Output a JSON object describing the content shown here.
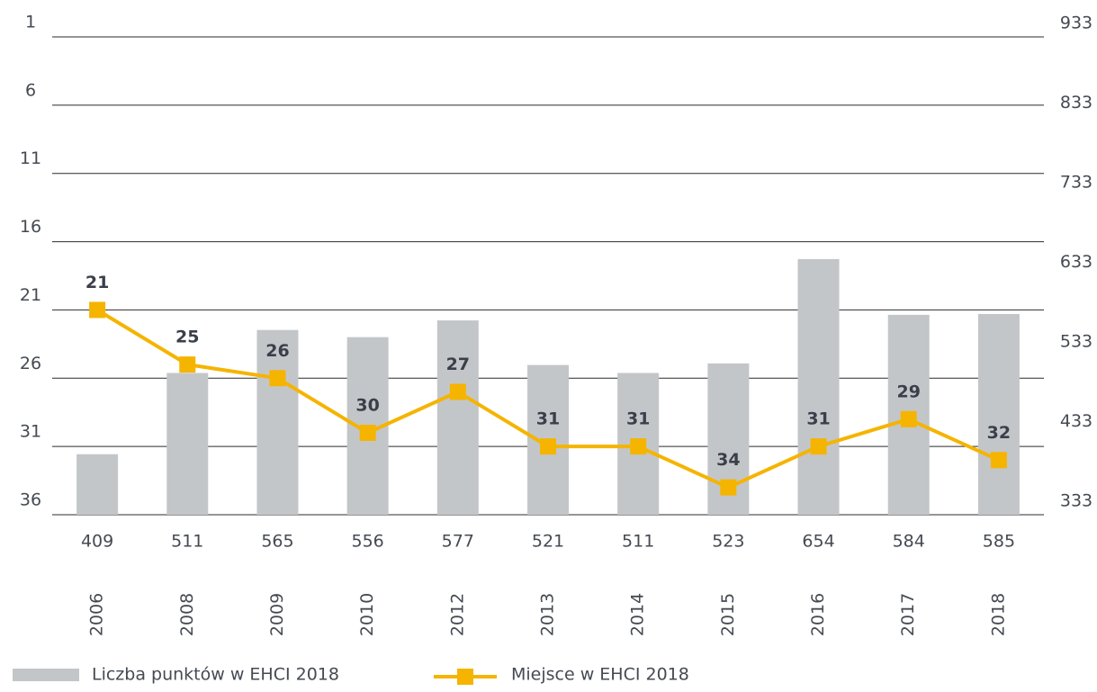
{
  "chart_data": {
    "type": "bar_line",
    "categories": [
      "2006",
      "2008",
      "2009",
      "2010",
      "2012",
      "2013",
      "2014",
      "2015",
      "2016",
      "2017",
      "2018"
    ],
    "series": [
      {
        "name": "Liczba punktów w EHCI 2018",
        "type": "bar",
        "axis": "y2",
        "color": "#c3c6c9",
        "values": [
          409,
          511,
          565,
          556,
          577,
          521,
          511,
          523,
          654,
          584,
          585
        ]
      },
      {
        "name": "Miejsce w EHCI 2018",
        "type": "line",
        "axis": "y",
        "color": "#f5b400",
        "values": [
          21,
          25,
          26,
          30,
          27,
          31,
          31,
          34,
          31,
          29,
          32
        ]
      }
    ],
    "ylim": [
      36,
      1
    ],
    "yticks": [
      1,
      6,
      11,
      16,
      21,
      26,
      31,
      36
    ],
    "y2lim": [
      333,
      933
    ],
    "y2ticks": [
      933,
      833,
      733,
      633,
      533,
      433,
      333
    ],
    "grid": true,
    "legend": "bottom-left"
  }
}
